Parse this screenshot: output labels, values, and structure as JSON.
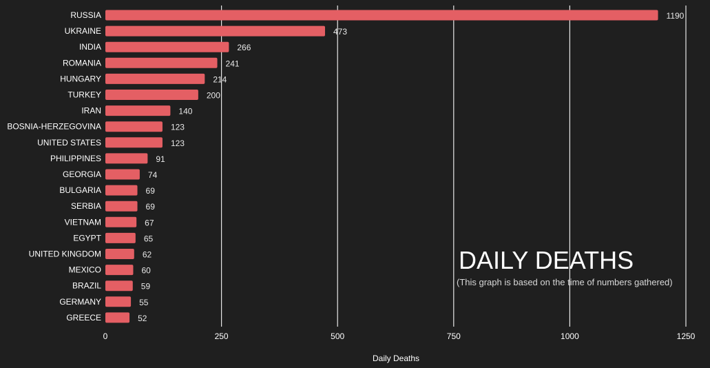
{
  "chart_data": {
    "type": "bar",
    "orientation": "horizontal",
    "title": "DAILY DEATHS",
    "subtitle": "(This graph is based on the time of numbers gathered)",
    "xlabel": "Daily Deaths",
    "ylabel": "",
    "xlim": [
      0,
      1250
    ],
    "xticks": [
      0,
      250,
      500,
      750,
      1000,
      1250
    ],
    "grid": true,
    "categories": [
      "RUSSIA",
      "UKRAINE",
      "INDIA",
      "ROMANIA",
      "HUNGARY",
      "TURKEY",
      "IRAN",
      "BOSNIA-HERZEGOVINA",
      "UNITED STATES",
      "PHILIPPINES",
      "GEORGIA",
      "BULGARIA",
      "SERBIA",
      "VIETNAM",
      "EGYPT",
      "UNITED KINGDOM",
      "MEXICO",
      "BRAZIL",
      "GERMANY",
      "GREECE"
    ],
    "values": [
      1190,
      473,
      266,
      241,
      214,
      200,
      140,
      123,
      123,
      91,
      74,
      69,
      69,
      67,
      65,
      62,
      60,
      59,
      55,
      52
    ]
  },
  "colors": {
    "background": "#1f1f1f",
    "bar": "#e45f64",
    "grid": "#ffffff",
    "text": "#ffffff"
  }
}
